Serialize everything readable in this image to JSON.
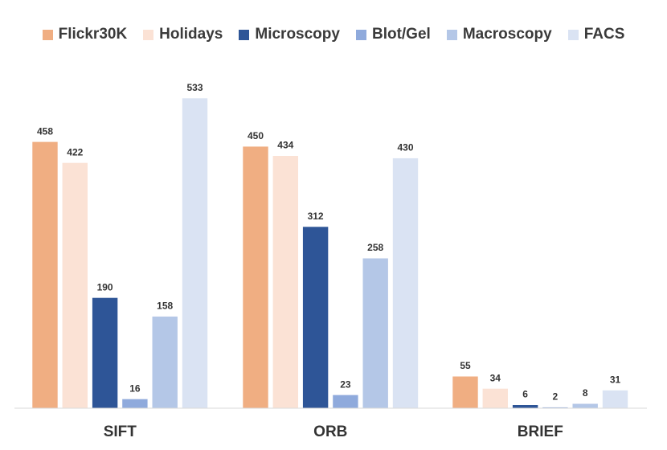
{
  "chart_data": {
    "type": "bar",
    "title": "",
    "xlabel": "",
    "ylabel": "",
    "categories": [
      "SIFT",
      "ORB",
      "BRIEF"
    ],
    "series": [
      {
        "name": "Flickr30K",
        "color": "#f0ae82",
        "values": [
          458,
          450,
          55
        ]
      },
      {
        "name": "Holidays",
        "color": "#fbe2d5",
        "values": [
          422,
          434,
          34
        ]
      },
      {
        "name": "Microscopy",
        "color": "#2e5597",
        "values": [
          190,
          312,
          6
        ]
      },
      {
        "name": "Blot/Gel",
        "color": "#8faadc",
        "values": [
          16,
          23,
          2
        ]
      },
      {
        "name": "Macroscopy",
        "color": "#b4c7e7",
        "values": [
          158,
          258,
          8
        ]
      },
      {
        "name": "FACS",
        "color": "#dae3f3",
        "values": [
          533,
          430,
          31
        ]
      }
    ],
    "ylim": [
      0,
      533
    ],
    "grid": false,
    "legend_position": "top"
  }
}
